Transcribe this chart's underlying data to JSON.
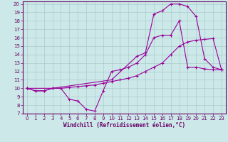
{
  "xlabel": "Windchill (Refroidissement éolien,°C)",
  "background_color": "#cce8e8",
  "line_color": "#990099",
  "grid_color": "#aacccc",
  "xlim": [
    -0.5,
    23.5
  ],
  "ylim": [
    7,
    20.3
  ],
  "xticks": [
    0,
    1,
    2,
    3,
    4,
    5,
    6,
    7,
    8,
    9,
    10,
    11,
    12,
    13,
    14,
    15,
    16,
    17,
    18,
    19,
    20,
    21,
    22,
    23
  ],
  "yticks": [
    7,
    8,
    9,
    10,
    11,
    12,
    13,
    14,
    15,
    16,
    17,
    18,
    19,
    20
  ],
  "line1_x": [
    0,
    1,
    2,
    3,
    4,
    5,
    6,
    7,
    8,
    9,
    10,
    11,
    12,
    13,
    14,
    15,
    16,
    17,
    18,
    19,
    20,
    21,
    22,
    23
  ],
  "line1_y": [
    10,
    9.7,
    9.7,
    10,
    10.0,
    8.7,
    8.5,
    7.5,
    7.3,
    9.7,
    12.0,
    12.2,
    12.5,
    13.0,
    14.0,
    16.0,
    16.3,
    16.3,
    18.0,
    12.5,
    12.5,
    12.3,
    12.2,
    12.2
  ],
  "line2_x": [
    0,
    1,
    2,
    3,
    4,
    5,
    6,
    7,
    8,
    9,
    10,
    11,
    12,
    13,
    14,
    15,
    16,
    17,
    18,
    19,
    20,
    21,
    22,
    23
  ],
  "line2_y": [
    10,
    9.7,
    9.7,
    10,
    10.0,
    10.1,
    10.2,
    10.3,
    10.4,
    10.6,
    10.8,
    11.0,
    11.2,
    11.5,
    12.0,
    12.5,
    13.0,
    14.0,
    15.0,
    15.5,
    15.7,
    15.8,
    15.9,
    12.2
  ],
  "line3_x": [
    0,
    3,
    10,
    13,
    14,
    15,
    16,
    17,
    18,
    19,
    20,
    21,
    22,
    23
  ],
  "line3_y": [
    10,
    10,
    11.0,
    13.8,
    14.2,
    18.8,
    19.2,
    20.0,
    20.0,
    19.7,
    18.5,
    13.5,
    12.5,
    12.2
  ],
  "tick_color": "#660066",
  "spine_color": "#660066",
  "tick_fontsize": 5,
  "xlabel_fontsize": 5.5
}
